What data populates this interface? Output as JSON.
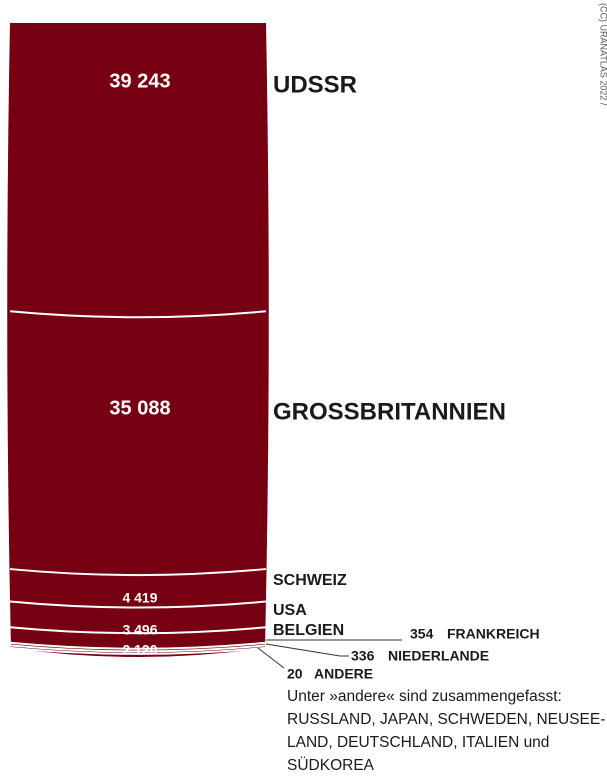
{
  "chart_data": {
    "type": "bar",
    "categories": [
      "UDSSR",
      "GROSSBRITANNIEN",
      "SCHWEIZ",
      "USA",
      "BELGIEN",
      "FRANKREICH",
      "NIEDERLANDE",
      "ANDERE"
    ],
    "values": [
      39243,
      35088,
      4419,
      3496,
      2120,
      354,
      336,
      20
    ],
    "value_labels": [
      "39 243",
      "35 088",
      "4 419",
      "3 496",
      "2 120",
      "354",
      "336",
      "20"
    ],
    "note": "Unter »andere« sind zusammengefasst: RUSSLAND, JAPAN, SCHWEDEN, NEUSEE- LAND, DEUTSCHLAND, ITALIEN und SÜDKOREA",
    "credit": "(CC) URANATLAS 2022 / "
  },
  "colors": {
    "bar": "#760012",
    "separator": "#ffffff",
    "leader": "#333333"
  }
}
